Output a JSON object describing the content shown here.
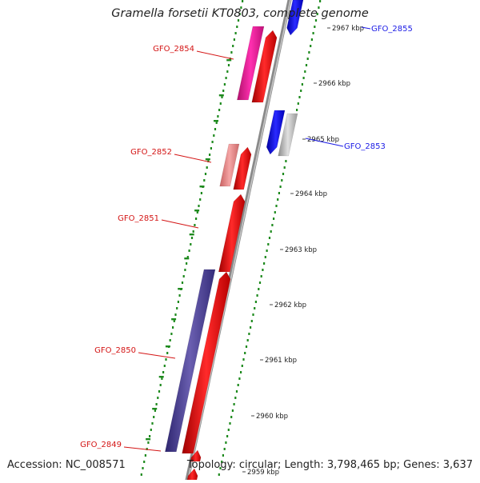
{
  "title": "Gramella forsetii KT0803, complete genome",
  "footer": {
    "accession": "Accession: NC_008571",
    "summary": "Topology: circular; Length: 3,798,465 bp; Genes: 3,637"
  },
  "scale": {
    "ticks": [
      "2967 kbp",
      "2966 kbp",
      "2965 kbp",
      "2964 kbp",
      "2963 kbp",
      "2962 kbp",
      "2961 kbp",
      "2960 kbp",
      "2959 kbp"
    ]
  },
  "gene_labels": [
    {
      "id": "GFO_2855",
      "color": "#1a1ae6"
    },
    {
      "id": "GFO_2854",
      "color": "#d41515"
    },
    {
      "id": "GFO_2853",
      "color": "#1a1ae6"
    },
    {
      "id": "GFO_2852",
      "color": "#d41515"
    },
    {
      "id": "GFO_2851",
      "color": "#d41515"
    },
    {
      "id": "GFO_2850",
      "color": "#d41515"
    },
    {
      "id": "GFO_2849",
      "color": "#d41515"
    }
  ],
  "colors": {
    "backbone": "#8a8a8a",
    "forward_cds": "#ee1111",
    "reverse_cds": "#1111ee",
    "rna_gene": "#ee1a9a",
    "gray_feature": "#b8b8b8",
    "pink_feature": "#e88a8a",
    "purple_feature": "#4a3f8f",
    "gc_ticks": "#1e8a1e"
  }
}
